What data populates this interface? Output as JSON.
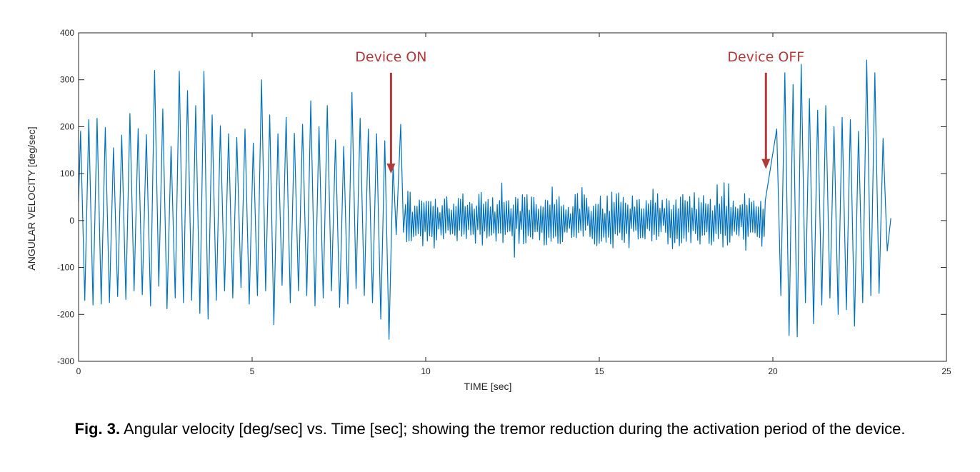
{
  "chart_data": {
    "type": "line",
    "title": "",
    "xlabel": "TIME [sec]",
    "ylabel": "ANGULAR VELOCITY [deg/sec]",
    "xlim": [
      0,
      25
    ],
    "ylim": [
      -300,
      400
    ],
    "xticks": [
      0,
      5,
      10,
      15,
      20,
      25
    ],
    "yticks": [
      -300,
      -200,
      -100,
      0,
      100,
      200,
      300,
      400
    ],
    "grid": false,
    "line_color": "#0072bd",
    "series": [
      {
        "segments": [
          {
            "phase": "before activation",
            "x_range": [
              0,
              9.0
            ],
            "peaks": [
              190,
              215,
              218,
              198,
              155,
              182,
              228,
              196,
              183,
              320,
              238,
              158,
              318,
              277,
              245,
              318,
              225,
              202,
              185,
              177,
              195,
              165,
              300,
              225,
              185,
              220,
              186,
              205,
              255,
              200,
              245,
              172,
              158,
              273,
              218,
              195,
              185,
              170
            ],
            "troughs": [
              -170,
              -180,
              -178,
              -175,
              -162,
              -168,
              -150,
              -158,
              -182,
              -140,
              -188,
              -165,
              -175,
              -170,
              -198,
              -210,
              -170,
              -150,
              -165,
              -143,
              -178,
              -160,
              -150,
              -222,
              -138,
              -175,
              -150,
              -160,
              -182,
              -165,
              -150,
              -185,
              -178,
              -145,
              -160,
              -175,
              -210,
              -253
            ]
          },
          {
            "phase": "device on",
            "x_range": [
              9.0,
              19.8
            ],
            "range_approx": [
              -110,
              110
            ]
          },
          {
            "phase": "after deactivation",
            "x_range": [
              19.8,
              23.4
            ],
            "peaks": [
              195,
              315,
              290,
              333,
              260,
              235,
              245,
              200,
              220,
              215,
              190,
              342,
              315,
              175
            ],
            "troughs": [
              -160,
              -245,
              -248,
              -175,
              -220,
              -180,
              -165,
              -200,
              -190,
              -225,
              -175,
              -160,
              -155,
              -65
            ]
          }
        ]
      }
    ],
    "annotations": [
      {
        "text": "Device ON",
        "x": 9.0,
        "y_from": 315,
        "y_to": 100,
        "color": "#b03a3a"
      },
      {
        "text": "Device OFF",
        "x": 19.8,
        "y_from": 315,
        "y_to": 110,
        "color": "#b03a3a"
      }
    ]
  },
  "caption": {
    "label": "Fig. 3.",
    "text": " Angular velocity [deg/sec] vs. Time [sec]; showing the tremor reduction during the activation period of the device."
  }
}
